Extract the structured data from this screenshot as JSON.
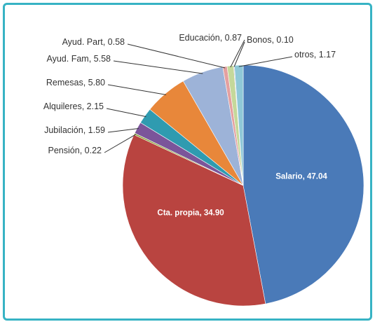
{
  "chart_data": {
    "type": "pie",
    "categories": [
      "Salario",
      "Cta. propia",
      "Pensión",
      "Jubilación",
      "Alquileres",
      "Remesas",
      "Ayud. Fam",
      "Ayud. Part",
      "Educación",
      "Bonos",
      "otros"
    ],
    "values": [
      47.04,
      34.9,
      0.22,
      1.59,
      2.15,
      5.8,
      5.58,
      0.58,
      0.87,
      0.1,
      1.17
    ],
    "value_labels": [
      "47.04",
      "34.90",
      "0.22",
      "1.59",
      "2.15",
      "5.80",
      "5.58",
      "0.58",
      "0.87",
      "0.10",
      "1.17"
    ],
    "colors": [
      "#4a7ab8",
      "#b94440",
      "#8aa33b",
      "#7b559a",
      "#2f9bb0",
      "#e8873a",
      "#9db3d8",
      "#e4a0a0",
      "#c5d89a",
      "#b8a9cc",
      "#8fc8d8"
    ]
  }
}
